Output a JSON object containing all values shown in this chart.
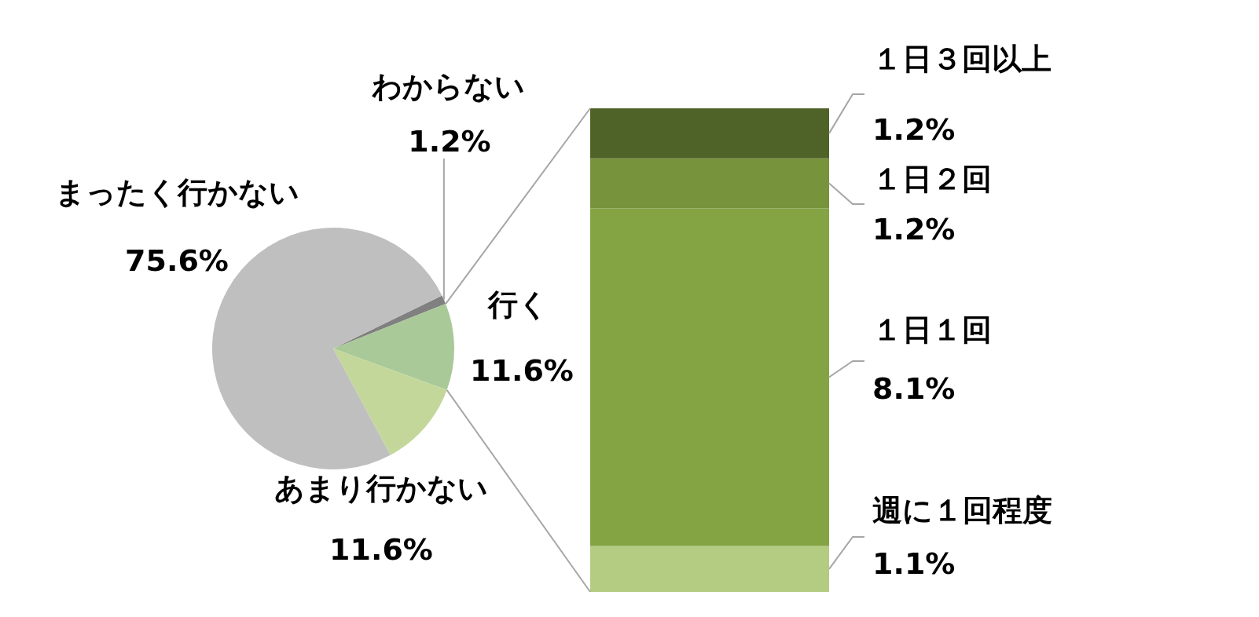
{
  "chart_data": [
    {
      "type": "pie",
      "categories": [
        "わからない",
        "行く",
        "あまり行かない",
        "まったく行かない"
      ],
      "values": [
        1.2,
        11.6,
        11.6,
        75.6
      ],
      "colors": [
        "#808080",
        "#a9c998",
        "#c4d79b",
        "#bfbfbf"
      ],
      "value_labels": [
        "1.2%",
        "11.6%",
        "11.6%",
        "75.6%"
      ]
    },
    {
      "type": "bar",
      "stacked": true,
      "categories": [
        null
      ],
      "series": [
        {
          "name": "週に１回程度",
          "color": "#b3cc82",
          "values": [
            1.1
          ],
          "value_labels": [
            "1.1%"
          ]
        },
        {
          "name": "１日１回",
          "color": "#84a443",
          "values": [
            8.1
          ],
          "value_labels": [
            "8.1%"
          ]
        },
        {
          "name": "１日２回",
          "color": "#77933c",
          "values": [
            1.2
          ],
          "value_labels": [
            "1.2%"
          ]
        },
        {
          "name": "１日３回以上",
          "color": "#4f6228",
          "values": [
            1.2
          ],
          "value_labels": [
            "1.2%"
          ]
        }
      ]
    }
  ]
}
